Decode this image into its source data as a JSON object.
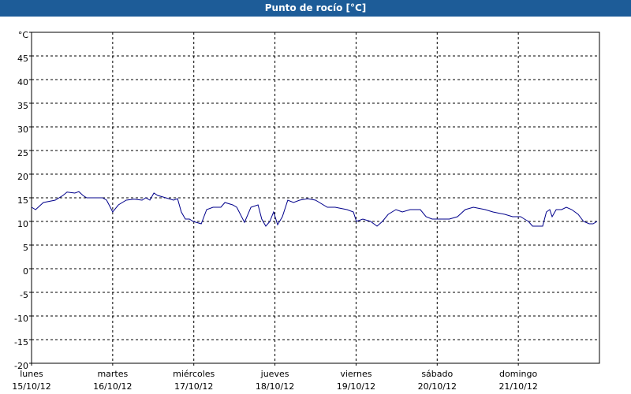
{
  "chart_data": {
    "type": "line",
    "title": "Punto de rocío [°C]",
    "xlim": [
      0,
      168
    ],
    "xticks": [
      {
        "value": 0,
        "label": "lunes"
      },
      {
        "value": 24,
        "label": "martes"
      },
      {
        "value": 48,
        "label": "miércoles"
      },
      {
        "value": 72,
        "label": "jueves"
      },
      {
        "value": 96,
        "label": "viernes"
      },
      {
        "value": 120,
        "label": "sábado"
      },
      {
        "value": 144,
        "label": "domingo"
      }
    ],
    "xtick_dates": [
      "15/10/12",
      "16/10/12",
      "17/10/12",
      "18/10/12",
      "19/10/12",
      "20/10/12",
      "21/10/12"
    ],
    "ylim": [
      -20,
      50
    ],
    "yticks": [
      -20,
      -15,
      -10,
      -5,
      0,
      5,
      10,
      15,
      20,
      25,
      30,
      35,
      40,
      45,
      {
        "value": 50,
        "label": "°C"
      }
    ],
    "grid": true,
    "series": [
      {
        "color": "#00008b",
        "x": [
          0,
          1.2,
          3.5,
          7,
          9.3,
          10.5,
          12.8,
          14,
          15.2,
          16.3,
          18.7,
          21,
          22.2,
          23.3,
          24,
          25.7,
          28,
          30.3,
          32.7,
          33.8,
          35,
          36.2,
          37.3,
          39.7,
          42,
          43.2,
          44.3,
          45.5,
          46.7,
          47.8,
          50.2,
          51.8,
          53.7,
          56,
          57.2,
          59.5,
          60.7,
          63,
          64.9,
          67,
          68.1,
          69.3,
          70.5,
          71.6,
          72.8,
          74.2,
          75.8,
          77.5,
          79.3,
          81.7,
          84,
          87.5,
          89.8,
          93.3,
          95.2,
          96.1,
          98,
          100.3,
          102.2,
          103.8,
          105.5,
          107.8,
          109.7,
          112,
          115,
          116.7,
          118.5,
          120.1,
          123.6,
          126,
          128.3,
          130.7,
          134.2,
          136.5,
          140,
          142.3,
          144.7,
          145.8,
          147,
          148.2,
          151.2,
          152.3,
          153.3,
          154,
          155.2,
          156.8,
          158.2,
          159.8,
          161.7,
          163.3,
          165,
          166.1,
          167.3
        ],
        "values": [
          13,
          12.5,
          14,
          14.5,
          15.5,
          16.2,
          16,
          16.3,
          15.5,
          15,
          15,
          15,
          14.5,
          13,
          12,
          13.5,
          14.5,
          14.7,
          14.5,
          15,
          14.5,
          16,
          15.5,
          15,
          14.5,
          14.8,
          12,
          10.5,
          10.5,
          10,
          9.5,
          12.5,
          13,
          13,
          14,
          13.5,
          13,
          9.8,
          13,
          13.5,
          10.5,
          9,
          10,
          12,
          9.3,
          11,
          14.5,
          14,
          14.5,
          14.8,
          14.5,
          13,
          13,
          12.5,
          12,
          10,
          10.5,
          10,
          9,
          10,
          11.5,
          12.5,
          12,
          12.5,
          12.5,
          11,
          10.5,
          10.5,
          10.5,
          11,
          12.5,
          13,
          12.5,
          12,
          11.5,
          11,
          11,
          10.5,
          10,
          9,
          9,
          12,
          12.5,
          11,
          12.5,
          12.5,
          13,
          12.5,
          11.5,
          10,
          9.5,
          9.5,
          10
        ]
      }
    ]
  }
}
